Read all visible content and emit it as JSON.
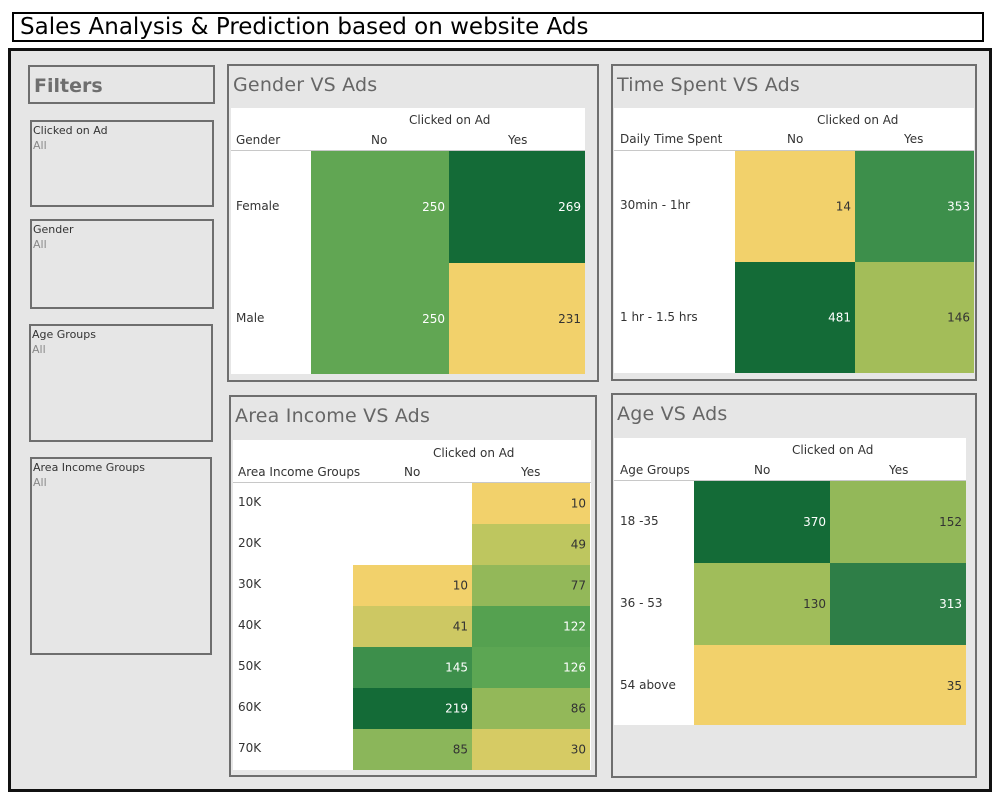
{
  "title": "Sales Analysis & Prediction based on website Ads",
  "filters": {
    "heading": "Filters",
    "items": [
      {
        "label": "Clicked on Ad",
        "value": "All"
      },
      {
        "label": "Gender",
        "value": "All"
      },
      {
        "label": "Age Groups",
        "value": "All"
      },
      {
        "label": "Area Income Groups",
        "value": "All"
      }
    ]
  },
  "panels": {
    "gender": {
      "title": "Gender VS Ads",
      "column_title": "Clicked on Ad",
      "row_header": "Gender",
      "columns": [
        "No",
        "Yes"
      ],
      "rows": [
        "Female",
        "Male"
      ]
    },
    "time": {
      "title": "Time Spent VS Ads",
      "column_title": "Clicked on Ad",
      "row_header": "Daily Time Spent",
      "columns": [
        "No",
        "Yes"
      ],
      "rows": [
        "30min - 1hr",
        "1 hr - 1.5 hrs"
      ]
    },
    "income": {
      "title": "Area Income VS Ads",
      "column_title": "Clicked on Ad",
      "row_header": "Area Income Groups",
      "columns": [
        "No",
        "Yes"
      ],
      "rows": [
        "10K",
        "20K",
        "30K",
        "40K",
        "50K",
        "60K",
        "70K"
      ]
    },
    "age": {
      "title": "Age VS Ads",
      "column_title": "Clicked on Ad",
      "row_header": "Age Groups",
      "columns": [
        "No",
        "Yes"
      ],
      "rows": [
        "18 -35",
        "36 - 53",
        "54 above"
      ]
    }
  },
  "chart_data": [
    {
      "type": "heatmap",
      "title": "Gender VS Ads",
      "xlabel": "Clicked on Ad",
      "ylabel": "Gender",
      "x": [
        "No",
        "Yes"
      ],
      "y": [
        "Female",
        "Male"
      ],
      "values": [
        [
          250,
          269
        ],
        [
          250,
          231
        ]
      ],
      "colors": [
        [
          "#61a653",
          "#146b37"
        ],
        [
          "#61a653",
          "#f2d16b"
        ]
      ]
    },
    {
      "type": "heatmap",
      "title": "Time Spent VS Ads",
      "xlabel": "Clicked on Ad",
      "ylabel": "Daily Time Spent",
      "x": [
        "No",
        "Yes"
      ],
      "y": [
        "30min - 1hr",
        "1 hr - 1.5 hrs"
      ],
      "values": [
        [
          14,
          353
        ],
        [
          481,
          146
        ]
      ],
      "colors": [
        [
          "#f2d16b",
          "#3d8f4b"
        ],
        [
          "#146b37",
          "#a3bd59"
        ]
      ]
    },
    {
      "type": "heatmap",
      "title": "Area Income VS Ads",
      "xlabel": "Clicked on Ad",
      "ylabel": "Area Income Groups",
      "x": [
        "No",
        "Yes"
      ],
      "y": [
        "10K",
        "20K",
        "30K",
        "40K",
        "50K",
        "60K",
        "70K"
      ],
      "values": [
        [
          null,
          10
        ],
        [
          null,
          49
        ],
        [
          10,
          77
        ],
        [
          41,
          122
        ],
        [
          145,
          126
        ],
        [
          219,
          86
        ],
        [
          85,
          30
        ]
      ],
      "colors": [
        [
          null,
          "#f2d16b"
        ],
        [
          null,
          "#bec65f"
        ],
        [
          "#f2d16b",
          "#93b859"
        ],
        [
          "#cdc863",
          "#55a150"
        ],
        [
          "#3d8f4b",
          "#5ca653"
        ],
        [
          "#146b37",
          "#93b859"
        ],
        [
          "#8bb65a",
          "#d6cb64"
        ]
      ]
    },
    {
      "type": "heatmap",
      "title": "Age VS Ads",
      "xlabel": "Clicked on Ad",
      "ylabel": "Age Groups",
      "x": [
        "No",
        "Yes"
      ],
      "y": [
        "18 -35",
        "36 - 53",
        "54 above"
      ],
      "values": [
        [
          370,
          152
        ],
        [
          130,
          313
        ],
        [
          null,
          35
        ]
      ],
      "colors": [
        [
          "#146b37",
          "#93b859"
        ],
        [
          "#a0bd5a",
          "#2e7e47"
        ],
        [
          null,
          "#f2d16b"
        ]
      ]
    }
  ]
}
